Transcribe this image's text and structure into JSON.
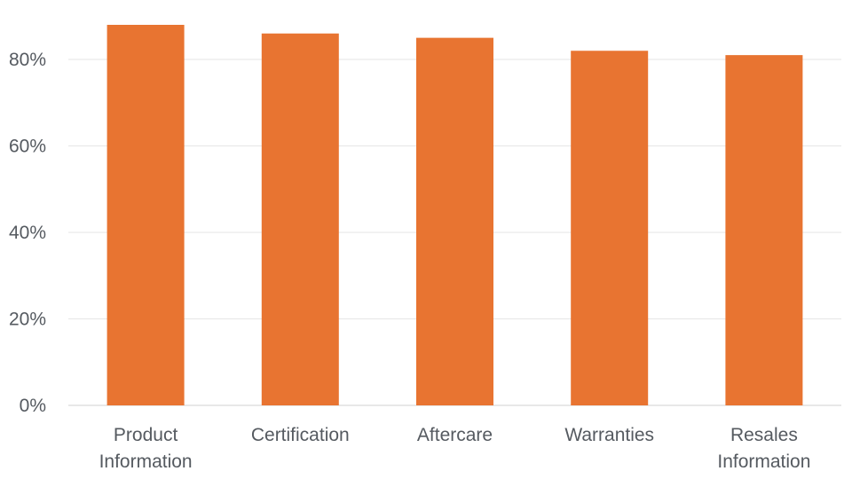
{
  "chart_data": {
    "type": "bar",
    "categories": [
      [
        "Product",
        "Information"
      ],
      [
        "Certification"
      ],
      [
        "Aftercare"
      ],
      [
        "Warranties"
      ],
      [
        "Resales",
        "Information"
      ]
    ],
    "values": [
      88,
      86,
      85,
      82,
      81
    ],
    "ylim": [
      0,
      90
    ],
    "yticks": [
      0,
      20,
      40,
      60,
      80
    ],
    "ytick_labels": [
      "0%",
      "20%",
      "40%",
      "60%",
      "80%"
    ],
    "grid": true,
    "legend": "none",
    "colors": {
      "bar": "#E87431",
      "grid": "#E6E6E6",
      "text": "#555A60"
    }
  }
}
